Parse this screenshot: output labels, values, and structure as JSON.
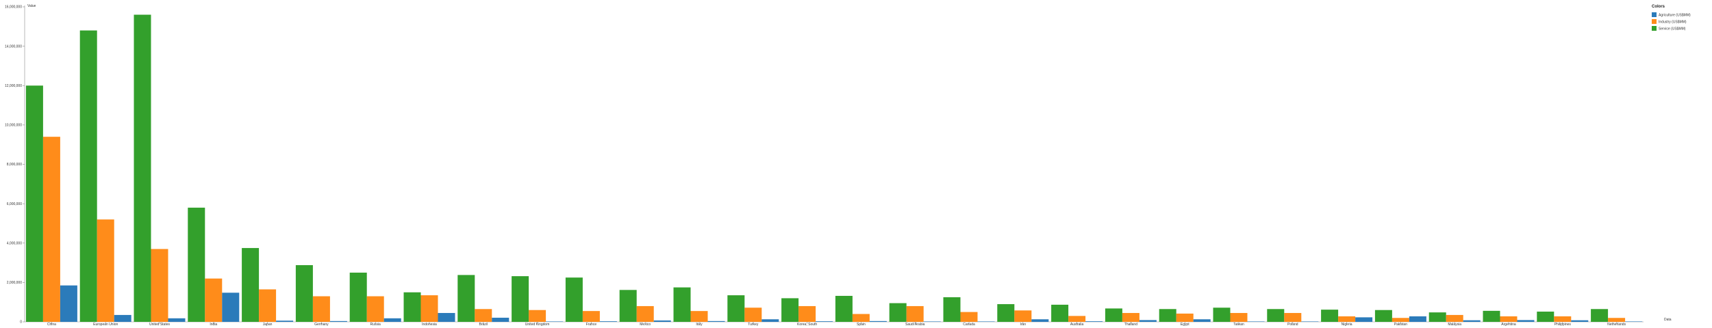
{
  "chart_data": {
    "type": "bar",
    "ylabel": "Value",
    "xlabel": "Data",
    "legend_title": "Colors",
    "legend_position": "top-right",
    "grid": false,
    "ylim": [
      0,
      16000000
    ],
    "yticks": [
      {
        "value": 0,
        "label": "0"
      },
      {
        "value": 2000000,
        "label": "2,000,000"
      },
      {
        "value": 4000000,
        "label": "4,000,000"
      },
      {
        "value": 6000000,
        "label": "6,000,000"
      },
      {
        "value": 8000000,
        "label": "8,000,000"
      },
      {
        "value": 10000000,
        "label": "10,000,000"
      },
      {
        "value": 12000000,
        "label": "12,000,000"
      },
      {
        "value": 14000000,
        "label": "14,000,000"
      },
      {
        "value": 16000000,
        "label": "16,000,000"
      }
    ],
    "categories": [
      "China",
      "European Union",
      "United States",
      "India",
      "Japan",
      "Germany",
      "Russia",
      "Indonesia",
      "Brazil",
      "United Kingdom",
      "France",
      "Mexico",
      "Italy",
      "Turkey",
      "Korea, South",
      "Spain",
      "Saudi Arabia",
      "Canada",
      "Iran",
      "Australia",
      "Thailand",
      "Egypt",
      "Taiwan",
      "Poland",
      "Nigeria",
      "Pakistan",
      "Malaysia",
      "Argentina",
      "Philippines",
      "Netherlands"
    ],
    "series": [
      {
        "name": "Agriculture (US$MM)",
        "color": "#2b7bba",
        "values": [
          1850000,
          350000,
          180000,
          1480000,
          60000,
          40000,
          180000,
          450000,
          210000,
          20000,
          30000,
          70000,
          40000,
          130000,
          30000,
          40000,
          20000,
          20000,
          130000,
          30000,
          90000,
          130000,
          20000,
          20000,
          230000,
          280000,
          80000,
          90000,
          80000,
          20000
        ]
      },
      {
        "name": "Industry (US$MM)",
        "color": "#ff8c1a",
        "values": [
          9400000,
          5200000,
          3700000,
          2200000,
          1650000,
          1300000,
          1300000,
          1350000,
          650000,
          600000,
          550000,
          800000,
          550000,
          720000,
          800000,
          400000,
          800000,
          500000,
          580000,
          300000,
          450000,
          420000,
          450000,
          450000,
          280000,
          200000,
          350000,
          280000,
          280000,
          200000
        ]
      },
      {
        "name": "Service (US$MM)",
        "color": "#33a02c",
        "values": [
          12000000,
          14800000,
          15600000,
          5800000,
          3750000,
          2880000,
          2500000,
          1500000,
          2380000,
          2320000,
          2250000,
          1620000,
          1750000,
          1350000,
          1200000,
          1320000,
          950000,
          1250000,
          900000,
          870000,
          680000,
          650000,
          720000,
          650000,
          620000,
          600000,
          480000,
          560000,
          520000,
          650000
        ]
      }
    ]
  }
}
